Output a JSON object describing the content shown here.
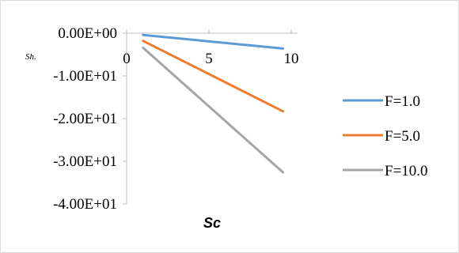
{
  "chart_data": {
    "type": "line",
    "xlabel": "Sc",
    "ylabel": "Sh.",
    "xlim": [
      0,
      10
    ],
    "ylim": [
      -40,
      0
    ],
    "x_ticks": [
      0,
      5,
      10
    ],
    "x_tick_labels": [
      "0",
      "5",
      "10"
    ],
    "y_ticks": [
      0,
      -10,
      -20,
      -30,
      -40
    ],
    "y_tick_labels": [
      "0.00E+00",
      "-1.00E+01",
      "-2.00E+01",
      "-3.00E+01",
      "-4.00E+01"
    ],
    "legend_position": "right",
    "grid": false,
    "series": [
      {
        "name": "F=1.0",
        "color": "#5b9bd5",
        "x": [
          1,
          9.5
        ],
        "y": [
          -0.4,
          -3.6
        ]
      },
      {
        "name": "F=5.0",
        "color": "#ed7d31",
        "x": [
          1,
          9.5
        ],
        "y": [
          -1.8,
          -18.3
        ]
      },
      {
        "name": "F=10.0",
        "color": "#a5a5a5",
        "x": [
          1,
          9.5
        ],
        "y": [
          -3.4,
          -32.6
        ]
      }
    ]
  }
}
